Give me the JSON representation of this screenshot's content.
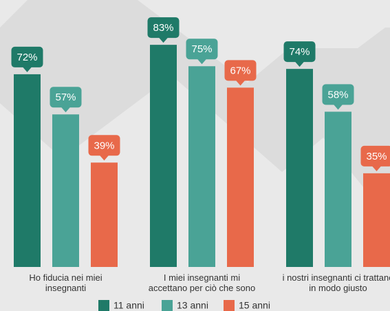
{
  "chart_data": {
    "type": "bar",
    "categories": [
      "Ho fiducia nei miei insegnanti",
      "I miei insegnanti mi accettano per ciò che sono",
      "i nostri insegnanti ci trattano in modo giusto"
    ],
    "series": [
      {
        "name": "11 anni",
        "color": "#1f7a68",
        "values": [
          72,
          83,
          74
        ],
        "value_labels": [
          "72%",
          "83%",
          "74%"
        ]
      },
      {
        "name": "13 anni",
        "color": "#4aa396",
        "values": [
          57,
          75,
          58
        ],
        "value_labels": [
          "57%",
          "75%",
          "58%"
        ]
      },
      {
        "name": "15 anni",
        "color": "#e8694a",
        "values": [
          39,
          67,
          35
        ],
        "value_labels": [
          "39%",
          "67%",
          "35%"
        ]
      }
    ],
    "ylim": [
      0,
      100
    ]
  }
}
